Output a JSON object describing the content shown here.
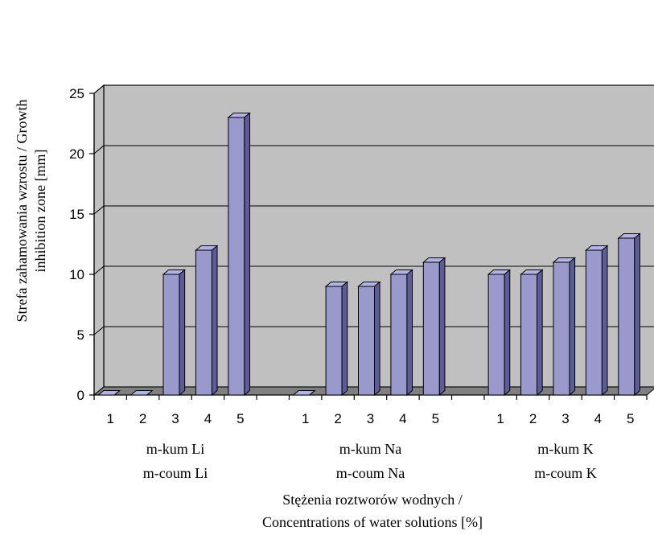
{
  "chart_data": {
    "type": "bar",
    "title": "",
    "ylabel_line1": "Strefa zahamowania wzrostu / Growth",
    "ylabel_line2": "inhibition zone [mm]",
    "xlabel_line1": "Stężenia roztworów wodnych /",
    "xlabel_line2": "Concentrations of water solutions [%]",
    "ylim": [
      0,
      25
    ],
    "yticks": [
      "0",
      "5",
      "10",
      "15",
      "20",
      "25"
    ],
    "grid": true,
    "groups": [
      {
        "label_line1": "m-kum Li",
        "label_line2": "m-coum Li",
        "categories": [
          "1",
          "2",
          "3",
          "4",
          "5"
        ],
        "values": [
          0,
          0,
          10,
          12,
          23
        ]
      },
      {
        "label_line1": "m-kum Na",
        "label_line2": "m-coum Na",
        "categories": [
          "1",
          "2",
          "3",
          "4",
          "5"
        ],
        "values": [
          0,
          9,
          9,
          10,
          11
        ]
      },
      {
        "label_line1": "m-kum K",
        "label_line2": "m-coum K",
        "categories": [
          "1",
          "2",
          "3",
          "4",
          "5"
        ],
        "values": [
          10,
          10,
          11,
          12,
          13
        ]
      }
    ],
    "colors": {
      "bar": "#9999cc",
      "bar_top": "#b3b3e6",
      "bar_side": "#5c5c99",
      "wall": "#c0c0c0",
      "floor": "#808080"
    }
  }
}
